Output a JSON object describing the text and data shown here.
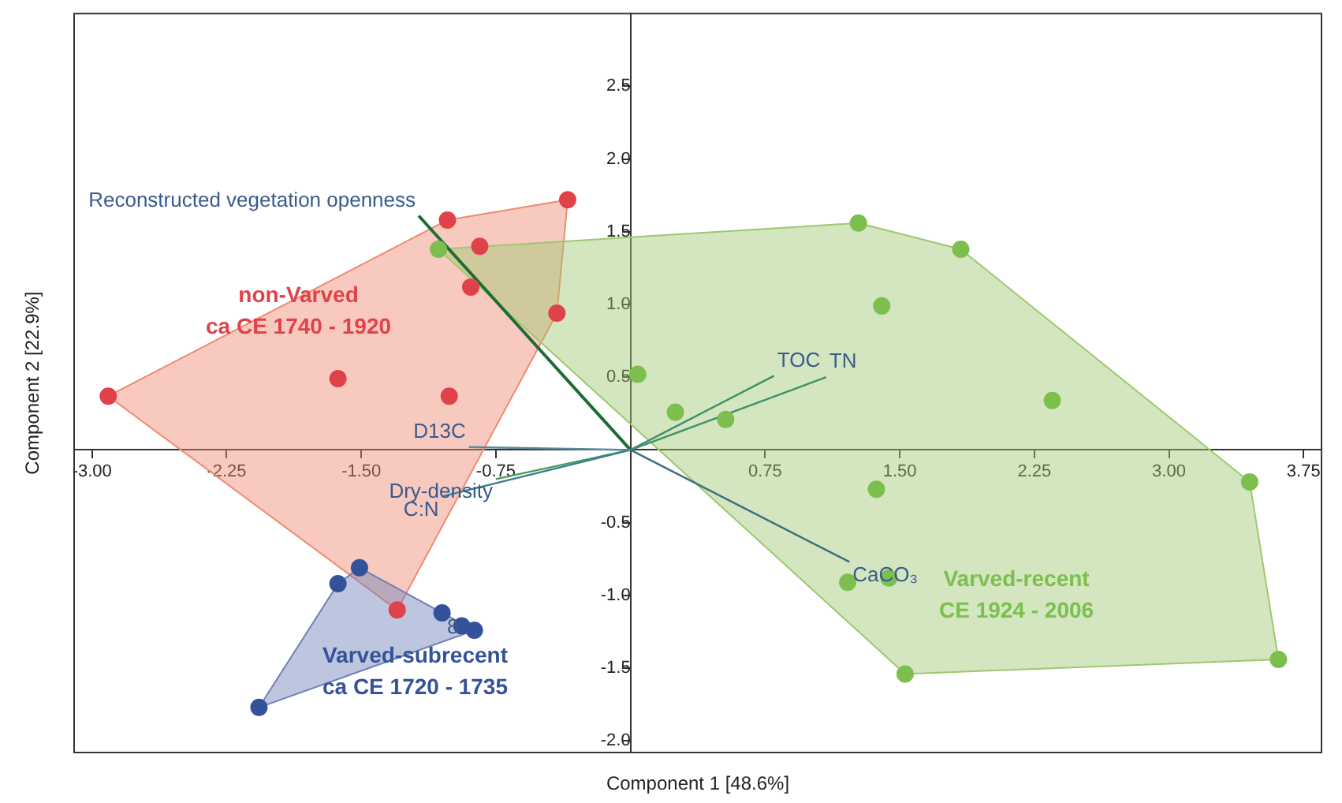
{
  "chart_data": {
    "type": "scatter",
    "xlabel": "Component 1 [48.6%]",
    "ylabel": "Component 2 [22.9%]",
    "xlim": [
      -3.1,
      3.85
    ],
    "ylim": [
      -2.08,
      3
    ],
    "xticks": [
      {
        "value": -3,
        "label": "-3.00"
      },
      -2.25,
      {
        "value": -1.5,
        "label": "-1.50"
      },
      -0.75,
      0.75,
      {
        "value": 1.5,
        "label": "1.50"
      },
      2.25,
      {
        "value": 3,
        "label": "3.00"
      },
      3.75
    ],
    "yticks": [
      {
        "value": -2,
        "label": "-2.0"
      },
      -1.5,
      {
        "value": -1,
        "label": "-1.0"
      },
      -0.5,
      0.5,
      {
        "value": 1,
        "label": "1.0"
      },
      1.5,
      {
        "value": 2,
        "label": "2.0"
      },
      2.5
    ],
    "series": [
      {
        "type": "area",
        "color": "#f08a70",
        "x": [
          -2.91,
          -1.02,
          -0.35,
          -0.41,
          -1.3,
          -2.91
        ],
        "values": [
          0.37,
          1.58,
          1.72,
          0.94,
          -1.1,
          0.37
        ]
      },
      {
        "type": "area",
        "color": "#9dc870",
        "x": [
          -1.07,
          1.27,
          1.84,
          3.45,
          3.61,
          1.53,
          -1.07
        ],
        "values": [
          1.38,
          1.56,
          1.38,
          -0.22,
          -1.44,
          -1.54,
          1.38
        ]
      },
      {
        "type": "area",
        "color": "#6f7fb8",
        "x": [
          -1.51,
          -0.87,
          -2.07,
          -1.63,
          -1.51
        ],
        "values": [
          -0.81,
          -1.24,
          -1.77,
          -0.92,
          -0.81
        ]
      },
      {
        "type": "line",
        "name": "Reconstructed vegetation openness",
        "color": "#1f6b35",
        "x": [
          0,
          -1.18
        ],
        "values": [
          0,
          1.61
        ]
      },
      {
        "type": "line",
        "name": "TOC",
        "color": "#3f8f6a",
        "x": [
          0,
          0.8
        ],
        "values": [
          0,
          0.51
        ]
      },
      {
        "type": "line",
        "name": "TN",
        "color": "#3f8f6a",
        "x": [
          0,
          1.09
        ],
        "values": [
          0,
          0.5
        ]
      },
      {
        "type": "line",
        "name": "CaCO₃",
        "color": "#3a6f80",
        "x": [
          0,
          1.22
        ],
        "values": [
          0,
          -0.77
        ]
      },
      {
        "type": "line",
        "name": "Dry-density",
        "color": "#4a9a5a",
        "x": [
          0,
          -0.75
        ],
        "values": [
          0,
          -0.2
        ]
      },
      {
        "type": "line",
        "name": "C:N",
        "color": "#3a7f8f",
        "x": [
          0,
          -1.05
        ],
        "values": [
          0,
          -0.32
        ]
      },
      {
        "type": "line",
        "name": "D13C",
        "color": "#5a8a9a",
        "x": [
          0,
          -0.9
        ],
        "values": [
          0,
          0.02
        ]
      },
      {
        "type": "scatter",
        "marker": "circle",
        "color": "#e0424a",
        "x": [
          -2.91,
          -1.63,
          -1.01,
          -1.02,
          -0.84,
          -0.89,
          -0.41,
          -0.35,
          -1.3
        ],
        "values": [
          0.37,
          0.49,
          0.37,
          1.58,
          1.4,
          1.12,
          0.94,
          1.72,
          -1.1
        ]
      },
      {
        "type": "scatter",
        "marker": "circle",
        "color": "#7cbf4e",
        "x": [
          -1.07,
          0.04,
          0.25,
          0.53,
          1.27,
          1.4,
          1.84,
          2.35,
          3.45,
          1.37,
          1.21,
          1.44,
          1.53,
          3.61
        ],
        "values": [
          1.38,
          0.52,
          0.26,
          0.21,
          1.56,
          0.99,
          1.38,
          0.34,
          -0.22,
          -0.27,
          -0.91,
          -0.88,
          -1.54,
          -1.44
        ]
      },
      {
        "type": "scatter",
        "marker": "circle",
        "color": "#34529a",
        "x": [
          -1.51,
          -1.63,
          -1.05,
          -0.94,
          -0.87,
          -2.07
        ],
        "values": [
          -0.81,
          -0.92,
          -1.12,
          -1.21,
          -1.24,
          -1.77
        ]
      }
    ],
    "annotations": [
      "non-Varved\nca CE 1740 - 1920",
      "Varved-subrecent\nca CE 1720 - 1735",
      "Varved-recent\nCE 1924 - 2006",
      {
        "text": "8",
        "x": -0.99,
        "y": -1.22
      }
    ]
  }
}
